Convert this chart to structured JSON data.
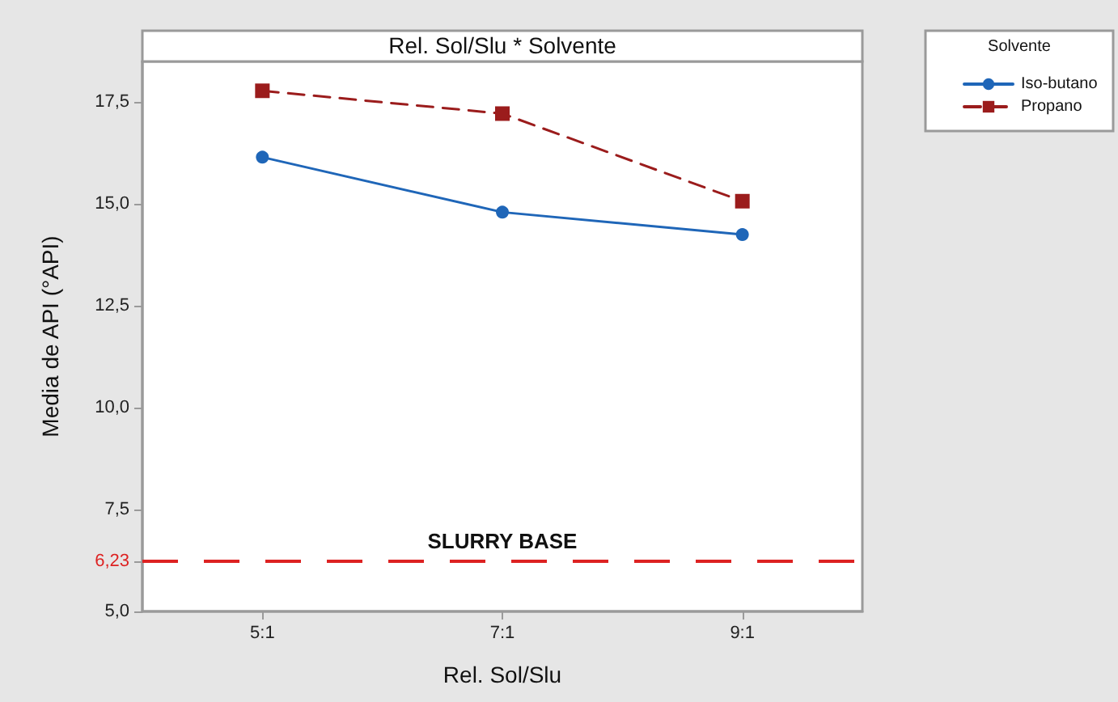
{
  "chart_data": {
    "type": "line",
    "title": "Rel. Sol/Slu * Solvente",
    "xlabel": "Rel. Sol/Slu",
    "ylabel": "Media de API (°API)",
    "legend_title": "Solvente",
    "categories": [
      "5:1",
      "7:1",
      "9:1"
    ],
    "series": [
      {
        "name": "Iso-butano",
        "color": "#1f66b8",
        "values": [
          16.15,
          14.8,
          14.25
        ],
        "marker": "circle",
        "line_style": "solid"
      },
      {
        "name": "Propano",
        "color": "#9b1c1c",
        "values": [
          17.78,
          17.22,
          15.07
        ],
        "marker": "square",
        "line_style": "dashed"
      }
    ],
    "ylim": [
      5,
      18.5
    ],
    "yticks": [
      {
        "value": 5,
        "label": "5,0"
      },
      {
        "value": 6.23,
        "label": "6,23"
      },
      {
        "value": 7.5,
        "label": "7,5"
      },
      {
        "value": 10,
        "label": "10,0"
      },
      {
        "value": 12.5,
        "label": "12,5"
      },
      {
        "value": 15,
        "label": "15,0"
      },
      {
        "value": 17.5,
        "label": "17,5"
      }
    ],
    "ref_lines": [
      {
        "axis": "y",
        "value": 6.23,
        "label": "SLURRY BASE",
        "color": "#dd2222",
        "line_style": "dashed"
      }
    ],
    "legend": "top right",
    "grid": false
  }
}
